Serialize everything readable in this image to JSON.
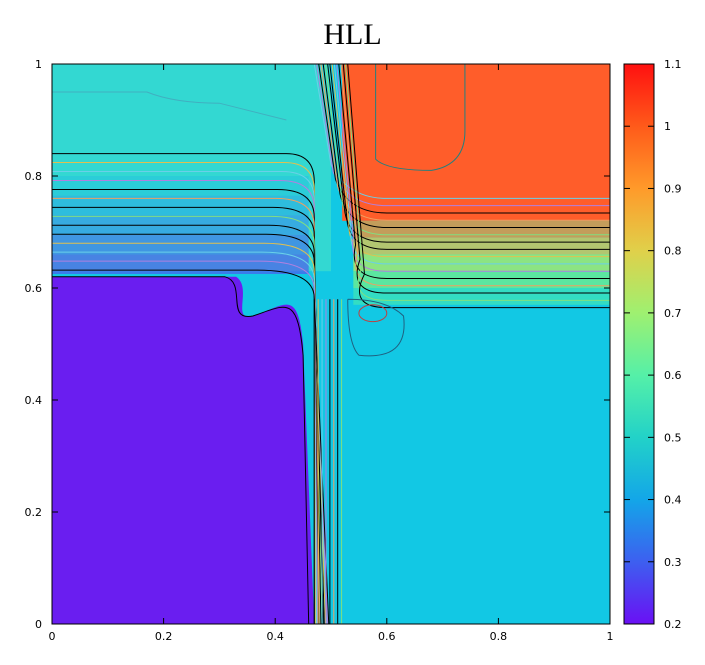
{
  "chart_data": {
    "type": "heatmap",
    "title": "HLL",
    "xlabel": "",
    "ylabel": "",
    "xlim": [
      0,
      1
    ],
    "ylim": [
      0,
      1
    ],
    "x_ticks": [
      "0",
      "0.2",
      "0.4",
      "0.6",
      "0.8",
      "1"
    ],
    "y_ticks": [
      "0",
      "0.2",
      "0.4",
      "0.6",
      "0.8",
      "1"
    ],
    "colorbar": {
      "range": [
        0.2,
        1.1
      ],
      "ticks": [
        "0.2",
        "0.3",
        "0.4",
        "0.5",
        "0.6",
        "0.7",
        "0.8",
        "0.9",
        "1",
        "1.1"
      ],
      "colormap": [
        "#6a10f4",
        "#3d5ff0",
        "#13a6e8",
        "#22d2c8",
        "#55f0a8",
        "#9ff070",
        "#e0d04a",
        "#ff9a2a",
        "#ff5a1a",
        "#ff1010"
      ]
    },
    "regions": [
      {
        "name": "lower-left",
        "value": 0.24,
        "color": "#6a1ef0"
      },
      {
        "name": "lower-right",
        "value": 0.44,
        "color": "#12c8e4"
      },
      {
        "name": "upper-left",
        "value": 0.5,
        "color": "#33d8d2"
      },
      {
        "name": "upper-right",
        "value": 1.0,
        "color": "#ff5d2a"
      }
    ],
    "grid": false,
    "legend": "colorbar-right"
  }
}
